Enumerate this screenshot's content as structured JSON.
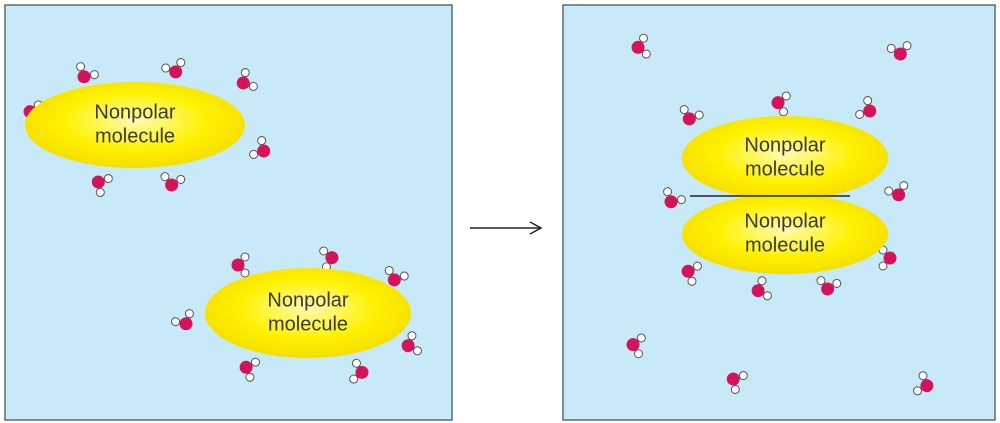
{
  "panels": [
    {
      "molecules": [
        {
          "lines": [
            "Nonpolar",
            "molecule"
          ]
        },
        {
          "lines": [
            "Nonpolar",
            "molecule"
          ]
        }
      ]
    },
    {
      "molecules": [
        {
          "lines": [
            "Nonpolar",
            "molecule"
          ]
        },
        {
          "lines": [
            "Nonpolar",
            "molecule"
          ]
        }
      ]
    }
  ]
}
